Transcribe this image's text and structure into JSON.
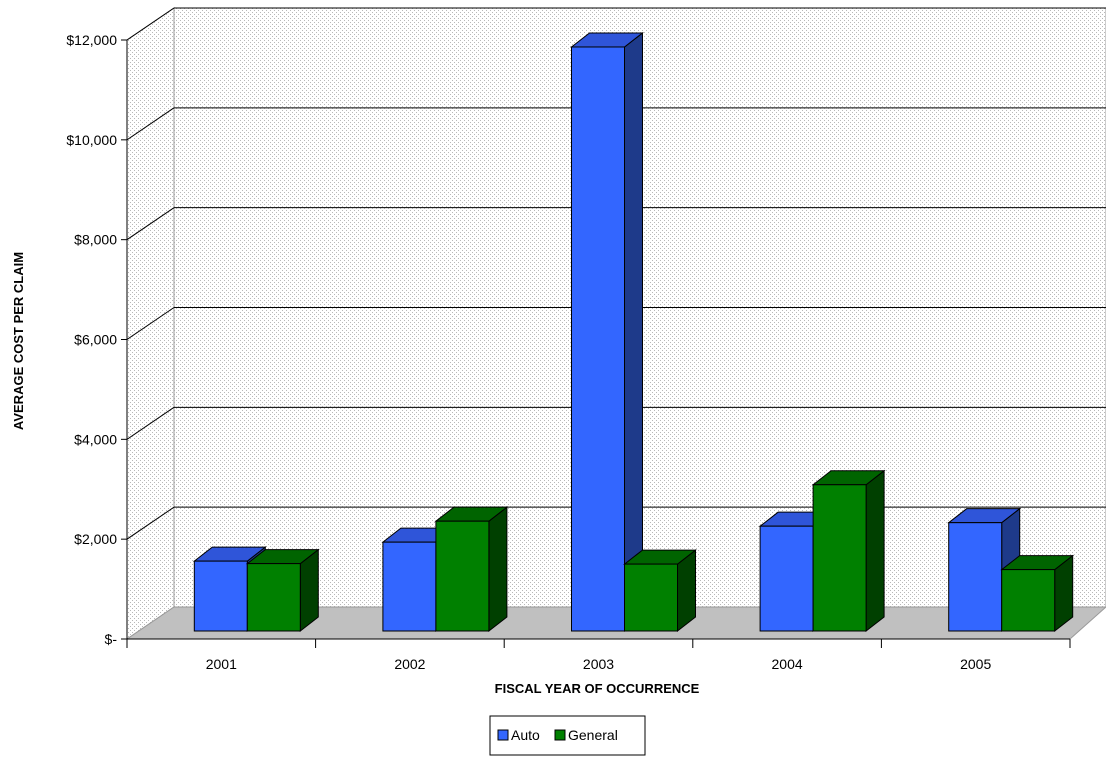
{
  "chart_data": {
    "type": "bar",
    "style": "3d-clustered-column",
    "categories": [
      "2001",
      "2002",
      "2003",
      "2004",
      "2005"
    ],
    "series": [
      {
        "name": "Auto",
        "values": [
          1400,
          1780,
          11700,
          2100,
          2170
        ],
        "color": "#3366ff",
        "side_color": "#1e3a8a",
        "top_color": "#2f55d9"
      },
      {
        "name": "General",
        "values": [
          1350,
          2200,
          1340,
          2930,
          1230
        ],
        "color": "#008000",
        "side_color": "#004000",
        "top_color": "#006400"
      }
    ],
    "xlabel": "FISCAL YEAR OF OCCURRENCE",
    "ylabel": "AVERAGE COST PER CLAIM",
    "ylim": [
      0,
      12000
    ],
    "yticks": [
      0,
      2000,
      4000,
      6000,
      8000,
      10000,
      12000
    ],
    "ytick_labels": [
      "$-",
      "$2,000",
      "$4,000",
      "$6,000",
      "$8,000",
      "$10,000",
      "$12,000"
    ],
    "grid": true,
    "legend_position": "bottom-center"
  }
}
